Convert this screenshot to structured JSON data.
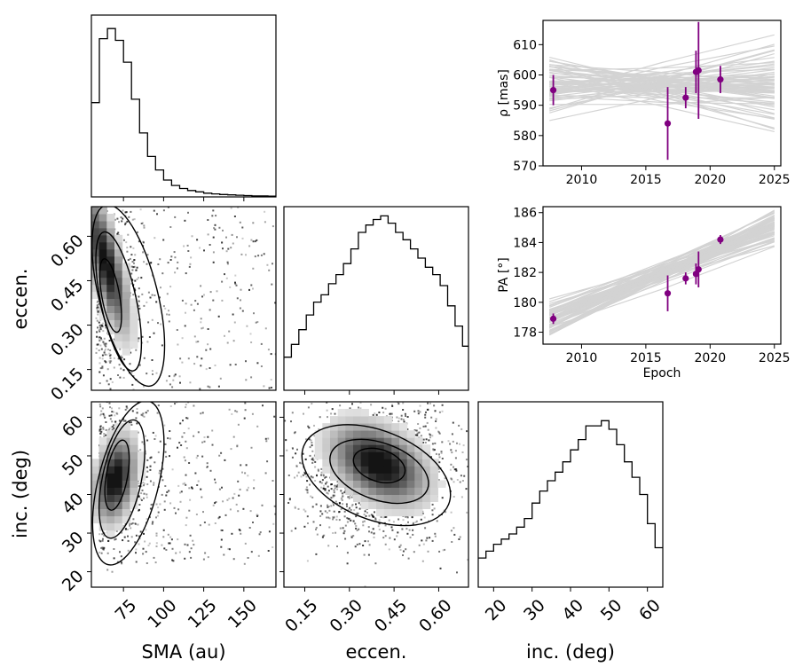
{
  "chart_data": [
    {
      "id": "hist_sma",
      "type": "histogram",
      "xlim": [
        55,
        170
      ],
      "bins": [
        55,
        60,
        65,
        70,
        75,
        80,
        85,
        90,
        95,
        100,
        105,
        110,
        115,
        120,
        125,
        130,
        135,
        140,
        145,
        150,
        155,
        160,
        165,
        170
      ],
      "counts": [
        0.56,
        0.94,
        1.0,
        0.93,
        0.8,
        0.58,
        0.38,
        0.24,
        0.16,
        0.1,
        0.068,
        0.05,
        0.038,
        0.03,
        0.022,
        0.018,
        0.014,
        0.012,
        0.01,
        0.008,
        0.006,
        0.006,
        0.004
      ],
      "ylim": [
        0,
        1.08
      ],
      "xticks": [
        75,
        100,
        125,
        150
      ]
    },
    {
      "id": "hist_ecc",
      "type": "histogram",
      "xlim": [
        0.08,
        0.7
      ],
      "bins": [
        0.08,
        0.105,
        0.13,
        0.155,
        0.18,
        0.205,
        0.23,
        0.255,
        0.28,
        0.305,
        0.33,
        0.355,
        0.38,
        0.405,
        0.43,
        0.455,
        0.48,
        0.505,
        0.53,
        0.555,
        0.58,
        0.605,
        0.63,
        0.655,
        0.68,
        0.7
      ],
      "counts": [
        0.18,
        0.25,
        0.33,
        0.41,
        0.48,
        0.52,
        0.58,
        0.63,
        0.69,
        0.77,
        0.86,
        0.9,
        0.93,
        0.95,
        0.91,
        0.86,
        0.82,
        0.77,
        0.72,
        0.67,
        0.63,
        0.57,
        0.46,
        0.35,
        0.24
      ],
      "ylim": [
        0,
        1.0
      ],
      "xticks": [
        0.15,
        0.3,
        0.45,
        0.6
      ],
      "xtick_labels": [
        "0.15",
        "0.30",
        "0.45",
        "0.60"
      ],
      "xlabel": "eccen."
    },
    {
      "id": "hist_inc",
      "type": "histogram",
      "xlim": [
        16,
        64
      ],
      "bins": [
        16,
        18,
        20,
        22,
        24,
        26,
        28,
        30,
        32,
        34,
        36,
        38,
        40,
        42,
        44,
        46,
        48,
        50,
        52,
        54,
        56,
        58,
        60,
        62,
        64
      ],
      "counts": [
        0.17,
        0.21,
        0.25,
        0.28,
        0.31,
        0.35,
        0.4,
        0.49,
        0.56,
        0.62,
        0.67,
        0.73,
        0.8,
        0.86,
        0.94,
        0.94,
        0.97,
        0.92,
        0.83,
        0.73,
        0.64,
        0.54,
        0.37,
        0.23
      ],
      "ylim": [
        0,
        1.08
      ],
      "xticks": [
        20,
        30,
        40,
        50,
        60
      ],
      "xlabel": "inc. (deg)"
    },
    {
      "id": "sma_vs_ecc",
      "type": "heatmap",
      "xlim": [
        55,
        170
      ],
      "ylim": [
        0.08,
        0.7
      ],
      "ylabel": "eccen.",
      "yticks": [
        0.15,
        0.3,
        0.45,
        0.6
      ],
      "ytick_labels": [
        "0.15",
        "0.30",
        "0.45",
        "0.60"
      ],
      "peak": [
        68,
        0.42
      ]
    },
    {
      "id": "sma_vs_inc",
      "type": "heatmap",
      "xlim": [
        55,
        170
      ],
      "ylim": [
        16,
        64
      ],
      "xlabel": "SMA (au)",
      "ylabel": "inc. (deg)",
      "xticks": [
        75,
        100,
        125,
        150
      ],
      "yticks": [
        20,
        30,
        40,
        50,
        60
      ],
      "peak": [
        72,
        46
      ]
    },
    {
      "id": "ecc_vs_inc",
      "type": "heatmap",
      "xlim": [
        0.08,
        0.7
      ],
      "ylim": [
        16,
        64
      ],
      "xticks": [
        0.15,
        0.3,
        0.45,
        0.6
      ],
      "xtick_labels": [
        "0.15",
        "0.30",
        "0.45",
        "0.60"
      ],
      "peak": [
        0.4,
        48
      ]
    },
    {
      "id": "rho_vs_epoch",
      "type": "scatter",
      "xlim": [
        2007,
        2025.5
      ],
      "ylim": [
        570,
        618
      ],
      "ylabel": "ρ [mas]",
      "xticks": [
        2010,
        2015,
        2020,
        2025
      ],
      "yticks": [
        570,
        580,
        590,
        600,
        610
      ],
      "points": [
        {
          "x": 2007.8,
          "y": 595.0,
          "err": 5.0
        },
        {
          "x": 2016.7,
          "y": 584.0,
          "err": 12.0
        },
        {
          "x": 2018.1,
          "y": 592.5,
          "err": 3.5
        },
        {
          "x": 2018.9,
          "y": 601.0,
          "err": 7.0
        },
        {
          "x": 2019.1,
          "y": 601.5,
          "err": 16.0
        },
        {
          "x": 2020.8,
          "y": 598.5,
          "err": 4.5
        }
      ]
    },
    {
      "id": "pa_vs_epoch",
      "type": "scatter",
      "xlim": [
        2007,
        2025.5
      ],
      "ylim": [
        177.2,
        186.4
      ],
      "ylabel": "PA [°]",
      "xlabel": "Epoch",
      "xticks": [
        2010,
        2015,
        2020,
        2025
      ],
      "yticks": [
        178,
        180,
        182,
        184,
        186
      ],
      "points": [
        {
          "x": 2007.8,
          "y": 178.9,
          "err": 0.35
        },
        {
          "x": 2016.7,
          "y": 180.6,
          "err": 1.2
        },
        {
          "x": 2018.1,
          "y": 181.6,
          "err": 0.4
        },
        {
          "x": 2018.9,
          "y": 181.9,
          "err": 0.7
        },
        {
          "x": 2019.1,
          "y": 182.2,
          "err": 1.2
        },
        {
          "x": 2020.8,
          "y": 184.2,
          "err": 0.3
        }
      ]
    }
  ],
  "colors": {
    "points": "#800080",
    "model_lines": "#d3d3d3",
    "hist": "#000000"
  }
}
